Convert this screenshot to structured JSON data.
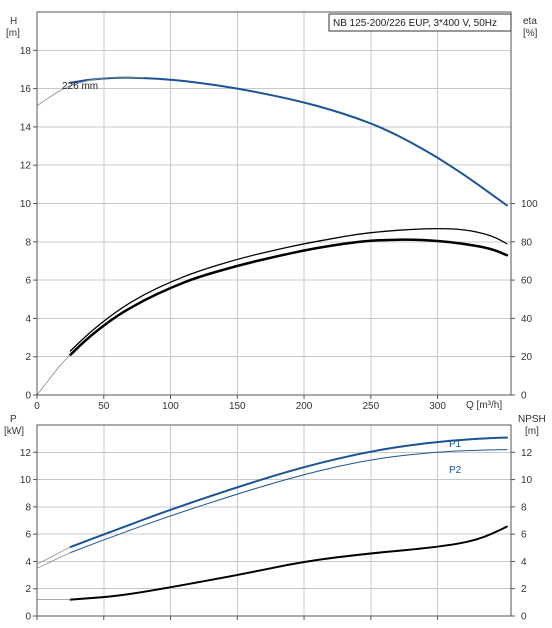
{
  "chart_data": [
    {
      "type": "line",
      "legend": "NB 125-200/226 EUP, 3*400 V, 50Hz",
      "left_axis": {
        "label_line1": "H",
        "label_line2": "[m]",
        "ylim": [
          0,
          20
        ],
        "ticks": [
          "0",
          "2",
          "4",
          "6",
          "8",
          "10",
          "12",
          "14",
          "16",
          "18"
        ]
      },
      "right_axis": {
        "label_line1": "eta",
        "label_line2": "[%]",
        "ylim": [
          0,
          200
        ],
        "ticks": [
          "0",
          "20",
          "40",
          "60",
          "80",
          "100"
        ]
      },
      "x_axis": {
        "label": "Q [m³/h]",
        "xlim": [
          0,
          355
        ],
        "ticks": [
          "0",
          "50",
          "100",
          "150",
          "200",
          "250",
          "300"
        ]
      },
      "grid": true,
      "series": [
        {
          "name": "226 mm",
          "axis": "left",
          "color": "#1a5496",
          "width": 2,
          "x": [
            25,
            40,
            60,
            80,
            100,
            120,
            150,
            180,
            200,
            220,
            240,
            260,
            280,
            300,
            320,
            340,
            360
          ],
          "y": [
            16.3,
            16.48,
            16.58,
            16.56,
            16.47,
            16.32,
            16.01,
            15.6,
            15.28,
            14.9,
            14.45,
            13.9,
            13.2,
            12.4,
            11.5,
            10.5,
            9.9
          ]
        },
        {
          "axis": "left",
          "color": "#8a8a8a",
          "width": 0.8,
          "x": [
            0,
            5,
            10,
            15,
            20,
            25,
            30,
            40,
            50,
            60,
            70,
            80
          ],
          "y": [
            15.1,
            15.35,
            15.58,
            15.8,
            16.0,
            16.15,
            16.27,
            16.45,
            16.56,
            16.6,
            16.6,
            16.56
          ]
        },
        {
          "axis": "right",
          "color": "#000000",
          "width": 1.3,
          "x": [
            25,
            40,
            60,
            80,
            100,
            120,
            150,
            180,
            200,
            220,
            240,
            260,
            280,
            300,
            320,
            340,
            360
          ],
          "y": [
            23,
            33,
            44,
            52.5,
            59,
            64.5,
            71,
            76,
            79,
            81.5,
            84,
            85.5,
            86.5,
            87,
            86.5,
            83.5,
            79
          ]
        },
        {
          "axis": "right",
          "color": "#000000",
          "width": 2.5,
          "x": [
            25,
            40,
            60,
            80,
            100,
            120,
            150,
            180,
            200,
            220,
            240,
            260,
            280,
            300,
            320,
            340,
            360
          ],
          "y": [
            21,
            31,
            41.5,
            49.5,
            56,
            61.5,
            67.5,
            72.5,
            75.5,
            78,
            80,
            81,
            81.2,
            80.6,
            79,
            76.5,
            73
          ]
        },
        {
          "axis": "right",
          "color": "#8a8a8a",
          "width": 0.8,
          "x": [
            0,
            5,
            10,
            15,
            20,
            25
          ],
          "y": [
            0,
            4.5,
            9,
            13.5,
            17.5,
            21
          ]
        }
      ],
      "curve_label": "226 mm"
    },
    {
      "type": "line",
      "left_axis": {
        "label_line1": "P",
        "label_line2": "[kW]",
        "ylim": [
          0,
          14
        ],
        "ticks": [
          "0",
          "2",
          "4",
          "6",
          "8",
          "10",
          "12"
        ]
      },
      "right_axis": {
        "label_line1": "NPSH",
        "label_line2": "[m]",
        "ylim": [
          0,
          14
        ],
        "ticks": [
          "0",
          "2",
          "4",
          "6",
          "8",
          "10",
          "12"
        ]
      },
      "x_axis": {
        "xlim": [
          0,
          355
        ]
      },
      "grid": true,
      "series": [
        {
          "name": "P1",
          "axis": "left",
          "color": "#1a5496",
          "width": 2,
          "x": [
            25,
            60,
            100,
            150,
            200,
            250,
            300,
            340,
            360
          ],
          "y": [
            5.05,
            6.35,
            7.8,
            9.45,
            10.95,
            12.1,
            12.8,
            13.05,
            13.07
          ]
        },
        {
          "name": "P2",
          "axis": "left",
          "color": "#1a5496",
          "width": 1,
          "x": [
            25,
            60,
            100,
            150,
            200,
            250,
            300,
            340,
            360
          ],
          "y": [
            4.65,
            5.95,
            7.35,
            8.95,
            10.4,
            11.5,
            12.05,
            12.18,
            12.2
          ]
        },
        {
          "axis": "left",
          "color": "#8a8a8a",
          "width": 0.8,
          "x": [
            0,
            25
          ],
          "y": [
            3.8,
            5.05
          ]
        },
        {
          "axis": "left",
          "color": "#8a8a8a",
          "width": 0.8,
          "x": [
            0,
            25
          ],
          "y": [
            3.5,
            4.65
          ]
        },
        {
          "name": "NPSH",
          "axis": "right",
          "color": "#000000",
          "width": 2,
          "x": [
            25,
            60,
            100,
            150,
            200,
            250,
            300,
            330,
            360
          ],
          "y": [
            1.2,
            1.45,
            2.1,
            3.0,
            4.0,
            4.6,
            5.05,
            5.55,
            6.55
          ]
        },
        {
          "axis": "right",
          "color": "#8a8a8a",
          "width": 0.8,
          "x": [
            0,
            25
          ],
          "y": [
            1.2,
            1.2
          ]
        }
      ],
      "curve_labels": [
        "P1",
        "P2"
      ]
    }
  ]
}
